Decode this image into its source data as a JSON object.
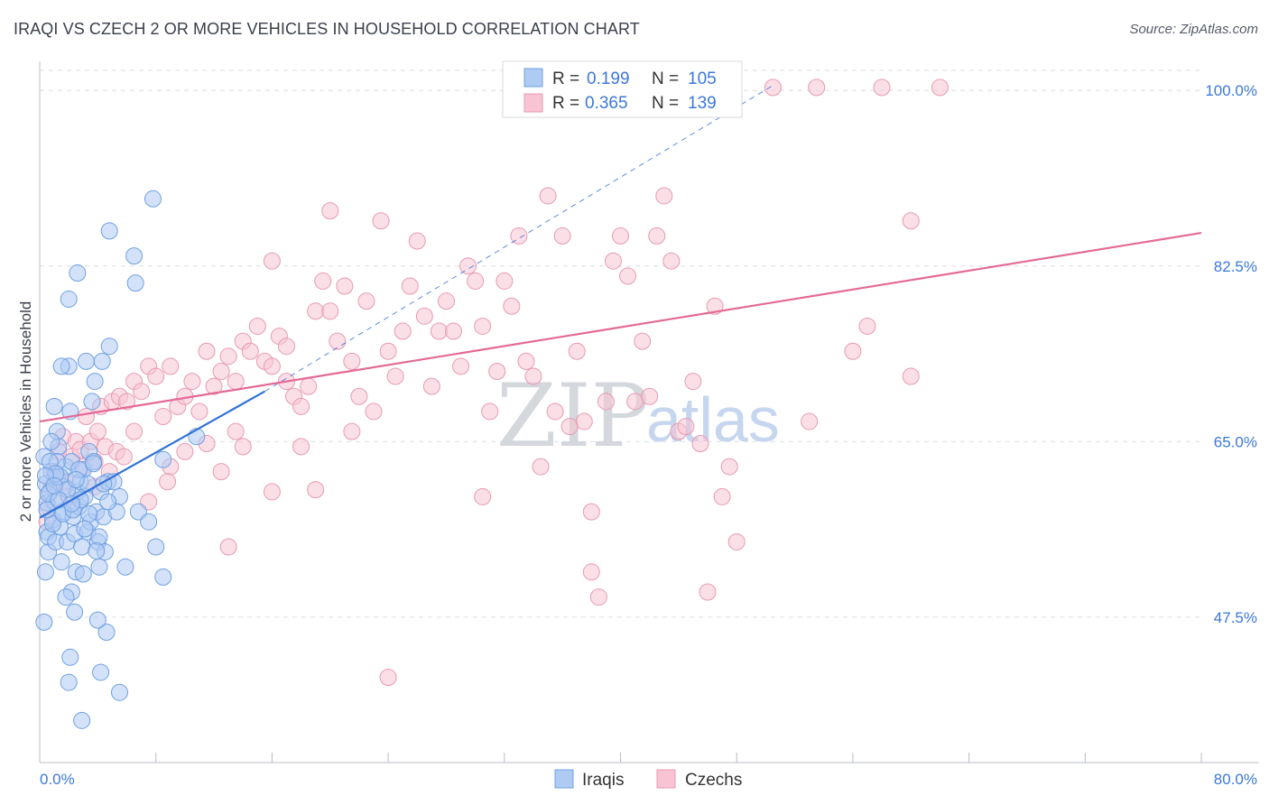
{
  "title": "IRAQI VS CZECH 2 OR MORE VEHICLES IN HOUSEHOLD CORRELATION CHART",
  "source": "Source: ZipAtlas.com",
  "watermark": {
    "part1": "ZIP",
    "part2": "atlas"
  },
  "colors": {
    "iraqis_fill": "#aecbf4",
    "iraqis_stroke": "#6fa0e2",
    "iraqis_line": "#3272d8",
    "czechs_fill": "#f8c4d4",
    "czechs_stroke": "#e79ab3",
    "czechs_line": "#e46996",
    "grid": "#d9dde3",
    "axis_text": "#3c78d8"
  },
  "legend_top": [
    {
      "r_label": "R =",
      "r_value": "0.199",
      "n_label": "N =",
      "n_value": "105"
    },
    {
      "r_label": "R =",
      "r_value": "0.365",
      "n_label": "N =",
      "n_value": "139"
    }
  ],
  "chart_data": {
    "type": "scatter",
    "title": "IRAQI VS CZECH 2 OR MORE VEHICLES IN HOUSEHOLD CORRELATION CHART",
    "xlabel": "",
    "ylabel": "2 or more Vehicles in Household",
    "xlim": [
      0,
      80
    ],
    "ylim": [
      33,
      102
    ],
    "x_tick_labels": [
      "0.0%",
      "80.0%"
    ],
    "y_tick_values": [
      47.5,
      65.0,
      82.5,
      100.0
    ],
    "y_tick_labels": [
      "47.5%",
      "65.0%",
      "82.5%",
      "100.0%"
    ],
    "grid": true,
    "legend_position": "top-center and bottom",
    "series": [
      {
        "name": "Iraqis",
        "r": 0.199,
        "n": 105,
        "trend": {
          "x0": 0,
          "y0": 57.4,
          "x1": 15.5,
          "y1": 70.0,
          "dashed_to": {
            "x": 50.5,
            "y": 100.5
          }
        },
        "points": [
          [
            0.3,
            63.5
          ],
          [
            0.4,
            60.8
          ],
          [
            0.5,
            58.9
          ],
          [
            0.5,
            56.0
          ],
          [
            0.6,
            54.0
          ],
          [
            0.4,
            52.0
          ],
          [
            0.3,
            47.0
          ],
          [
            0.6,
            55.5
          ],
          [
            0.7,
            60.0
          ],
          [
            0.8,
            62.0
          ],
          [
            0.9,
            57.2
          ],
          [
            1.0,
            59.0
          ],
          [
            1.1,
            55.0
          ],
          [
            1.2,
            66.0
          ],
          [
            1.2,
            61.5
          ],
          [
            1.3,
            64.5
          ],
          [
            1.4,
            56.5
          ],
          [
            1.5,
            53.0
          ],
          [
            1.6,
            58.0
          ],
          [
            1.7,
            60.5
          ],
          [
            1.8,
            62.5
          ],
          [
            1.9,
            55.0
          ],
          [
            2.0,
            72.5
          ],
          [
            2.1,
            68.0
          ],
          [
            2.2,
            63.0
          ],
          [
            2.3,
            57.5
          ],
          [
            2.4,
            55.8
          ],
          [
            2.5,
            52.0
          ],
          [
            2.6,
            60.0
          ],
          [
            2.7,
            58.5
          ],
          [
            2.8,
            61.0
          ],
          [
            2.9,
            54.5
          ],
          [
            3.0,
            62.2
          ],
          [
            3.1,
            59.5
          ],
          [
            3.2,
            73.0
          ],
          [
            3.3,
            56.0
          ],
          [
            3.4,
            64.0
          ],
          [
            3.5,
            57.0
          ],
          [
            3.6,
            69.0
          ],
          [
            3.7,
            63.0
          ],
          [
            3.8,
            71.0
          ],
          [
            3.9,
            58.0
          ],
          [
            4.0,
            55.0
          ],
          [
            4.1,
            52.5
          ],
          [
            4.2,
            60.0
          ],
          [
            4.3,
            73.0
          ],
          [
            4.4,
            57.5
          ],
          [
            4.5,
            54.0
          ],
          [
            4.6,
            46.0
          ],
          [
            4.7,
            61.0
          ],
          [
            1.0,
            68.5
          ],
          [
            1.5,
            72.5
          ],
          [
            2.0,
            79.2
          ],
          [
            2.6,
            81.8
          ],
          [
            4.8,
            74.5
          ],
          [
            4.8,
            86.0
          ],
          [
            6.5,
            83.5
          ],
          [
            6.6,
            80.8
          ],
          [
            7.8,
            89.2
          ],
          [
            8.5,
            63.2
          ],
          [
            6.8,
            58.0
          ],
          [
            7.5,
            57.0
          ],
          [
            8.0,
            54.5
          ],
          [
            8.5,
            51.5
          ],
          [
            10.8,
            65.5
          ],
          [
            5.5,
            59.5
          ],
          [
            5.9,
            52.5
          ],
          [
            5.1,
            61.0
          ],
          [
            5.3,
            58.0
          ],
          [
            4.0,
            47.2
          ],
          [
            2.2,
            50.0
          ],
          [
            2.4,
            48.0
          ],
          [
            2.1,
            43.5
          ],
          [
            2.0,
            41.0
          ],
          [
            4.2,
            42.0
          ],
          [
            5.5,
            40.0
          ],
          [
            2.9,
            37.2
          ],
          [
            1.4,
            61.5
          ],
          [
            1.2,
            63.0
          ],
          [
            0.8,
            65.0
          ],
          [
            0.7,
            63.0
          ],
          [
            1.8,
            49.5
          ],
          [
            3.0,
            51.8
          ],
          [
            2.7,
            62.2
          ],
          [
            4.1,
            55.5
          ],
          [
            0.9,
            56.8
          ],
          [
            1.6,
            57.8
          ],
          [
            2.3,
            58.2
          ],
          [
            3.3,
            60.8
          ],
          [
            4.7,
            59.0
          ],
          [
            0.6,
            59.8
          ],
          [
            1.1,
            61.8
          ],
          [
            1.9,
            60.2
          ],
          [
            2.8,
            59.2
          ],
          [
            3.4,
            57.8
          ],
          [
            0.5,
            58.2
          ],
          [
            1.3,
            59.2
          ],
          [
            2.5,
            61.2
          ],
          [
            3.7,
            62.8
          ],
          [
            4.4,
            60.8
          ],
          [
            0.4,
            61.6
          ],
          [
            1.0,
            60.6
          ],
          [
            2.2,
            58.8
          ],
          [
            3.1,
            56.3
          ],
          [
            3.9,
            54.1
          ]
        ]
      },
      {
        "name": "Czechs",
        "r": 0.365,
        "n": 139,
        "trend": {
          "x0": 0,
          "y0": 67.0,
          "x1": 80,
          "y1": 85.8
        },
        "points": [
          [
            0.5,
            57.0
          ],
          [
            0.6,
            58.5
          ],
          [
            0.8,
            60.5
          ],
          [
            1.0,
            62.0
          ],
          [
            1.3,
            64.0
          ],
          [
            1.6,
            65.5
          ],
          [
            1.8,
            61.0
          ],
          [
            2.0,
            59.5
          ],
          [
            2.2,
            63.5
          ],
          [
            2.5,
            65.0
          ],
          [
            2.8,
            64.2
          ],
          [
            3.0,
            62.5
          ],
          [
            3.2,
            67.5
          ],
          [
            3.5,
            65.0
          ],
          [
            3.8,
            63.0
          ],
          [
            4.0,
            66.0
          ],
          [
            4.2,
            68.5
          ],
          [
            4.5,
            64.5
          ],
          [
            4.8,
            62.0
          ],
          [
            5.0,
            69.0
          ],
          [
            5.3,
            64.0
          ],
          [
            5.5,
            69.5
          ],
          [
            6.0,
            69.0
          ],
          [
            6.5,
            71.0
          ],
          [
            7.0,
            70.0
          ],
          [
            7.5,
            72.5
          ],
          [
            8.0,
            71.5
          ],
          [
            8.5,
            67.5
          ],
          [
            9.0,
            72.5
          ],
          [
            9.5,
            68.5
          ],
          [
            10.0,
            69.5
          ],
          [
            10.5,
            71.0
          ],
          [
            11.0,
            68.0
          ],
          [
            11.5,
            74.0
          ],
          [
            12.0,
            70.5
          ],
          [
            12.5,
            72.0
          ],
          [
            13.0,
            73.5
          ],
          [
            13.5,
            71.0
          ],
          [
            14.0,
            75.0
          ],
          [
            14.5,
            74.0
          ],
          [
            15.0,
            76.5
          ],
          [
            15.5,
            73.0
          ],
          [
            16.0,
            72.5
          ],
          [
            16.5,
            75.5
          ],
          [
            17.0,
            74.5
          ],
          [
            17.5,
            69.5
          ],
          [
            18.0,
            68.5
          ],
          [
            18.5,
            70.5
          ],
          [
            19.0,
            78.0
          ],
          [
            19.5,
            81.0
          ],
          [
            20.0,
            78.0
          ],
          [
            20.5,
            75.0
          ],
          [
            21.0,
            80.5
          ],
          [
            21.5,
            73.0
          ],
          [
            22.0,
            69.5
          ],
          [
            22.5,
            79.0
          ],
          [
            23.0,
            68.0
          ],
          [
            23.5,
            87.0
          ],
          [
            24.0,
            74.0
          ],
          [
            24.5,
            71.5
          ],
          [
            25.0,
            76.0
          ],
          [
            25.5,
            80.5
          ],
          [
            26.0,
            85.0
          ],
          [
            26.5,
            77.5
          ],
          [
            27.0,
            70.5
          ],
          [
            27.5,
            76.0
          ],
          [
            28.0,
            79.0
          ],
          [
            28.5,
            76.0
          ],
          [
            29.0,
            72.5
          ],
          [
            29.5,
            82.5
          ],
          [
            30.0,
            81.0
          ],
          [
            30.5,
            76.5
          ],
          [
            31.0,
            68.0
          ],
          [
            31.5,
            72.0
          ],
          [
            32.0,
            81.0
          ],
          [
            32.5,
            78.5
          ],
          [
            33.0,
            85.5
          ],
          [
            33.5,
            73.0
          ],
          [
            34.0,
            71.5
          ],
          [
            34.5,
            62.5
          ],
          [
            35.0,
            89.5
          ],
          [
            35.5,
            68.0
          ],
          [
            36.0,
            85.5
          ],
          [
            36.5,
            66.5
          ],
          [
            37.0,
            74.0
          ],
          [
            37.5,
            67.0
          ],
          [
            38.0,
            58.0
          ],
          [
            38.5,
            49.5
          ],
          [
            39.0,
            69.0
          ],
          [
            39.5,
            83.0
          ],
          [
            40.0,
            85.5
          ],
          [
            40.5,
            81.5
          ],
          [
            41.0,
            69.0
          ],
          [
            41.5,
            75.0
          ],
          [
            42.0,
            69.5
          ],
          [
            42.5,
            85.5
          ],
          [
            43.0,
            89.5
          ],
          [
            43.5,
            83.0
          ],
          [
            44.0,
            66.0
          ],
          [
            44.5,
            66.5
          ],
          [
            45.0,
            71.0
          ],
          [
            45.5,
            64.8
          ],
          [
            46.0,
            50.0
          ],
          [
            46.5,
            78.5
          ],
          [
            47.0,
            59.5
          ],
          [
            47.5,
            62.5
          ],
          [
            48.0,
            55.0
          ],
          [
            53.0,
            67.0
          ],
          [
            57.0,
            76.5
          ],
          [
            56.0,
            74.0
          ],
          [
            60.0,
            71.5
          ],
          [
            60.0,
            87.0
          ],
          [
            16.0,
            83.0
          ],
          [
            18.0,
            64.5
          ],
          [
            14.0,
            64.5
          ],
          [
            20.0,
            88.0
          ],
          [
            24.0,
            41.5
          ],
          [
            30.5,
            59.5
          ],
          [
            38.0,
            52.0
          ],
          [
            50.5,
            100.3
          ],
          [
            53.5,
            100.3
          ],
          [
            58.0,
            100.3
          ],
          [
            62.0,
            100.3
          ],
          [
            40.5,
            100.3
          ],
          [
            9.0,
            62.5
          ],
          [
            7.5,
            59.0
          ],
          [
            11.5,
            64.8
          ],
          [
            13.5,
            66.0
          ],
          [
            17.0,
            71.0
          ],
          [
            21.5,
            66.0
          ],
          [
            3.8,
            60.5
          ],
          [
            6.5,
            66.0
          ],
          [
            10.0,
            64.0
          ],
          [
            12.5,
            62.0
          ],
          [
            16.0,
            60.0
          ],
          [
            5.8,
            63.5
          ],
          [
            8.8,
            61.0
          ],
          [
            13.0,
            54.5
          ],
          [
            19.0,
            60.2
          ]
        ]
      }
    ]
  },
  "legend_bottom": [
    {
      "label": "Iraqis"
    },
    {
      "label": "Czechs"
    }
  ]
}
